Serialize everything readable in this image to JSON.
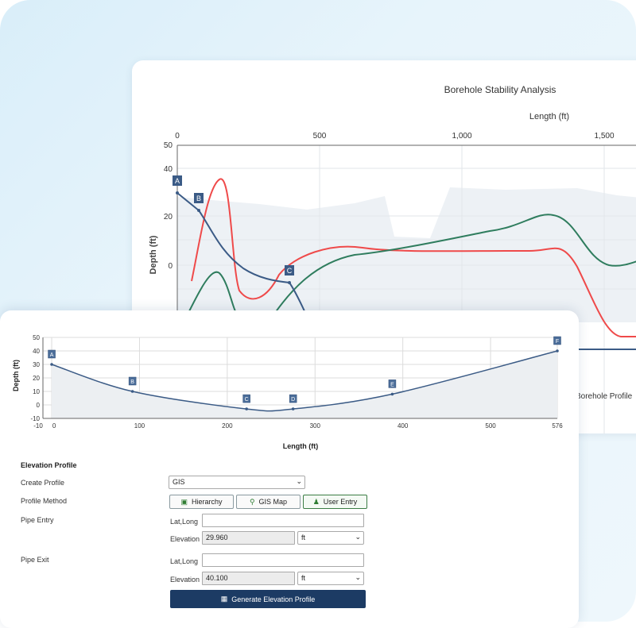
{
  "back_chart": {
    "title": "Borehole Stability Analysis",
    "xlabel": "Length (ft)",
    "ylabel": "Depth (ft)",
    "x_ticks": [
      "0",
      "500",
      "1,000",
      "1,500"
    ],
    "y_ticks": [
      "50",
      "40",
      "20",
      "0"
    ],
    "markers": [
      "A",
      "B",
      "C"
    ],
    "legend_fragment": "Borehole Profile"
  },
  "chart_data": {
    "type": "area",
    "title": "",
    "xlabel": "Length (ft)",
    "ylabel": "Depth (ft)",
    "xlim": [
      -10,
      576
    ],
    "ylim": [
      -10,
      50
    ],
    "x_ticks": [
      "-10",
      "0",
      "100",
      "200",
      "300",
      "400",
      "500",
      "576"
    ],
    "y_ticks": [
      "50",
      "40",
      "30",
      "20",
      "10",
      "0",
      "-10"
    ],
    "points": [
      {
        "label": "A",
        "x": 0,
        "y": 30
      },
      {
        "label": "B",
        "x": 92,
        "y": 10
      },
      {
        "label": "C",
        "x": 222,
        "y": -3
      },
      {
        "label": "D",
        "x": 275,
        "y": -3
      },
      {
        "label": "E",
        "x": 388,
        "y": 8
      },
      {
        "label": "F",
        "x": 576,
        "y": 40
      }
    ],
    "grid": true
  },
  "form": {
    "section_title": "Elevation Profile",
    "create_profile_label": "Create Profile",
    "create_profile_value": "GIS",
    "profile_method_label": "Profile Method",
    "methods": [
      "Hierarchy",
      "GIS Map",
      "User Entry"
    ],
    "pipe_entry_label": "Pipe Entry",
    "pipe_exit_label": "Pipe Exit",
    "latlong_label": "Lat,Long",
    "elevation_label": "Elevation",
    "entry_elevation": "29.960",
    "exit_elevation": "40.100",
    "unit": "ft",
    "generate_label": "Generate Elevation Profile"
  },
  "colors": {
    "line_blue": "#3b5b86",
    "line_red": "#ef4a4a",
    "line_green": "#2f7d5e",
    "button_dark": "#1c3b64",
    "fill_gray": "#eceff2"
  }
}
